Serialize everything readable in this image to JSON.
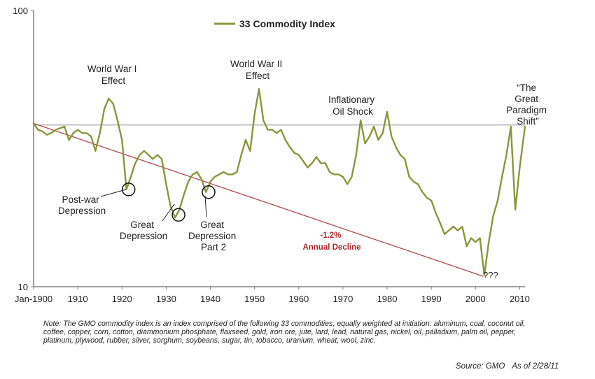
{
  "chart_data": {
    "type": "line",
    "y_scale": "log",
    "ylim": [
      10,
      100
    ],
    "xlim": [
      1900,
      2011.2
    ],
    "y_tick_labels": [
      "100",
      "10"
    ],
    "y_ticks": [
      100,
      10
    ],
    "x_ticks": [
      1900,
      1910,
      1920,
      1930,
      1940,
      1950,
      1960,
      1970,
      1980,
      1990,
      2000,
      2010
    ],
    "x_tick_labels": [
      "Jan-1900",
      "1910",
      "1920",
      "1930",
      "1940",
      "1950",
      "1960",
      "1970",
      "1980",
      "1990",
      "2000",
      "2010"
    ],
    "grid": false,
    "legend": {
      "position": "top-center",
      "label": "33 Commodity Index"
    },
    "colors": {
      "index": "#8a963a",
      "trend": "#b04848",
      "reference": "#a6a6a6",
      "axis": "#808080"
    },
    "series": [
      {
        "name": "33 Commodity Index",
        "x": [
          1900,
          1901,
          1902,
          1903,
          1904,
          1905,
          1906,
          1907,
          1908,
          1909,
          1910,
          1911,
          1912,
          1913,
          1914,
          1915,
          1916,
          1917,
          1918,
          1919,
          1920,
          1921,
          1922,
          1923,
          1924,
          1925,
          1926,
          1927,
          1928,
          1929,
          1930,
          1931,
          1932,
          1933,
          1934,
          1935,
          1936,
          1937,
          1938,
          1939,
          1940,
          1941,
          1942,
          1943,
          1944,
          1945,
          1946,
          1947,
          1948,
          1949,
          1950,
          1951,
          1952,
          1953,
          1954,
          1955,
          1956,
          1957,
          1958,
          1959,
          1960,
          1961,
          1962,
          1963,
          1964,
          1965,
          1966,
          1967,
          1968,
          1969,
          1970,
          1971,
          1972,
          1973,
          1974,
          1975,
          1976,
          1977,
          1978,
          1979,
          1980,
          1981,
          1982,
          1983,
          1984,
          1985,
          1986,
          1987,
          1988,
          1989,
          1990,
          1991,
          1992,
          1993,
          1994,
          1995,
          1996,
          1997,
          1998,
          1999,
          2000,
          2001,
          2002,
          2003,
          2004,
          2005,
          2006,
          2007,
          2008,
          2009,
          2010,
          2011.2
        ],
        "values": [
          39,
          37,
          36.5,
          35.5,
          36,
          37,
          37.5,
          38,
          34,
          36,
          37,
          36,
          36,
          35,
          31,
          36,
          44,
          48,
          46,
          40,
          34,
          22.5,
          25,
          28,
          30,
          31,
          30,
          29,
          30,
          29,
          23.5,
          19.5,
          17.8,
          19,
          21.5,
          24,
          25.5,
          26,
          24.5,
          22,
          24,
          25,
          25.5,
          26,
          25.5,
          25.5,
          26,
          30,
          34,
          31,
          42,
          52,
          40,
          37,
          37,
          36,
          37,
          34,
          32,
          30.5,
          30,
          28.5,
          27,
          28,
          29.5,
          28,
          28,
          26,
          25.5,
          25.5,
          25,
          23.5,
          25,
          30,
          40,
          33,
          35,
          38,
          34,
          36,
          43,
          35,
          32,
          30,
          29,
          25,
          24,
          23.5,
          22,
          21,
          20.5,
          18.5,
          17,
          15.5,
          16,
          16.5,
          16,
          16.5,
          14,
          15,
          14.5,
          15,
          11,
          14.5,
          18,
          20.5,
          25,
          30,
          38,
          19,
          27,
          38
        ]
      },
      {
        "name": "",
        "x": [
          1900,
          2001.8
        ],
        "values": [
          39,
          10.9
        ]
      },
      {
        "name": "",
        "x": [
          1900,
          2011.2
        ],
        "values": [
          38.5,
          38.5
        ]
      }
    ],
    "annotations": [
      {
        "id": "ww1",
        "lines": [
          "World War I",
          "Effect"
        ]
      },
      {
        "id": "ww2",
        "lines": [
          "World War II",
          "Effect"
        ]
      },
      {
        "id": "oil",
        "lines": [
          "Inflationary",
          "Oil Shock"
        ]
      },
      {
        "id": "paradigm",
        "lines": [
          "“The",
          "Great",
          "Paradigm",
          "Shift”"
        ]
      },
      {
        "id": "postwar",
        "lines": [
          "Post-war",
          "Depression"
        ]
      },
      {
        "id": "great",
        "lines": [
          "Great",
          "Depression"
        ]
      },
      {
        "id": "great2",
        "lines": [
          "Great",
          "Depression",
          "Part 2"
        ]
      },
      {
        "id": "decline",
        "lines": [
          "-1.2%",
          "Annual Decline"
        ]
      },
      {
        "id": "unknown",
        "lines": [
          "???"
        ]
      }
    ],
    "circled_points": [
      {
        "x": 1921.5,
        "y": 22.5
      },
      {
        "x": 1932.8,
        "y": 18.2
      },
      {
        "x": 1939.6,
        "y": 22
      }
    ]
  },
  "note": "Note: The GMO commodity index is an index comprised of the following 33 commodities, equally weighted at initiation:  aluminum, coal, coconut oil, coffee, copper, corn, cotton, diammonium phosphate, flaxseed, gold, iron ore, jute, lard, lead, natural gas, nickel, oil, palladium, palm oil, pepper, platinum, plywood, rubber, silver, sorghum, soybeans, sugar, tin, tobacco, uranium, wheat, wool, zinc.",
  "source": "Source:  GMO",
  "as_of": "As of 2/28/11"
}
